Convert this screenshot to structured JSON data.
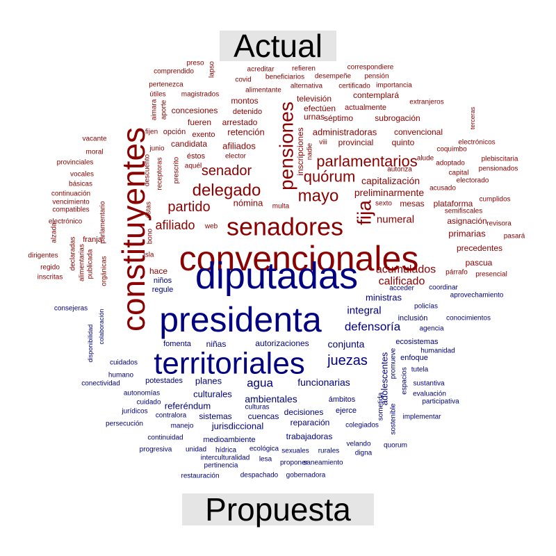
{
  "chart_data": {
    "type": "comparison_wordcloud",
    "groups": [
      {
        "label": "Actual",
        "color": "#8b0000"
      },
      {
        "label": "Propuesta",
        "color": "#000080"
      }
    ],
    "words": [
      {
        "text": "convencionales",
        "group": 0,
        "size": 50
      },
      {
        "text": "constituyentes",
        "group": 0,
        "size": 46
      },
      {
        "text": "senadores",
        "group": 0,
        "size": 36
      },
      {
        "text": "pensiones",
        "group": 0,
        "size": 28
      },
      {
        "text": "fija",
        "group": 0,
        "size": 28
      },
      {
        "text": "delegado",
        "group": 0,
        "size": 24
      },
      {
        "text": "mayo",
        "group": 0,
        "size": 24
      },
      {
        "text": "parlamentarios",
        "group": 0,
        "size": 22
      },
      {
        "text": "quórum",
        "group": 0,
        "size": 22
      },
      {
        "text": "senador",
        "group": 0,
        "size": 20
      },
      {
        "text": "partido",
        "group": 0,
        "size": 20
      },
      {
        "text": "afiliado",
        "group": 0,
        "size": 18
      },
      {
        "text": "acumulados",
        "group": 0,
        "size": 16
      },
      {
        "text": "calificado",
        "group": 0,
        "size": 16
      },
      {
        "text": "numeral",
        "group": 0,
        "size": 15
      },
      {
        "text": "preliminarmente",
        "group": 0,
        "size": 14
      },
      {
        "text": "capitalización",
        "group": 0,
        "size": 14
      },
      {
        "text": "administradoras",
        "group": 0,
        "size": 13
      },
      {
        "text": "nómina",
        "group": 0,
        "size": 13
      },
      {
        "text": "afiliados",
        "group": 0,
        "size": 13
      },
      {
        "text": "retención",
        "group": 0,
        "size": 13
      },
      {
        "text": "primarias",
        "group": 0,
        "size": 13
      },
      {
        "text": "precedentes",
        "group": 0,
        "size": 12
      },
      {
        "text": "pascua",
        "group": 0,
        "size": 12
      },
      {
        "text": "hace",
        "group": 0,
        "size": 12
      },
      {
        "text": "asignación",
        "group": 0,
        "size": 12
      },
      {
        "text": "plataforma",
        "group": 0,
        "size": 12
      },
      {
        "text": "mesas",
        "group": 0,
        "size": 12
      },
      {
        "text": "convencional",
        "group": 0,
        "size": 12
      },
      {
        "text": "quinto",
        "group": 0,
        "size": 12
      },
      {
        "text": "séptimo",
        "group": 0,
        "size": 12
      },
      {
        "text": "subrogación",
        "group": 0,
        "size": 12
      },
      {
        "text": "candidata",
        "group": 0,
        "size": 12
      },
      {
        "text": "fueren",
        "group": 0,
        "size": 12
      },
      {
        "text": "arrestado",
        "group": 0,
        "size": 12
      },
      {
        "text": "montos",
        "group": 0,
        "size": 12
      },
      {
        "text": "detenido",
        "group": 0,
        "size": 11
      },
      {
        "text": "concesiones",
        "group": 0,
        "size": 12
      },
      {
        "text": "contemplará",
        "group": 0,
        "size": 12
      },
      {
        "text": "televisión",
        "group": 0,
        "size": 12
      },
      {
        "text": "efectúen",
        "group": 0,
        "size": 12
      },
      {
        "text": "actualmente",
        "group": 0,
        "size": 11
      },
      {
        "text": "urnas",
        "group": 0,
        "size": 12
      },
      {
        "text": "provincial",
        "group": 0,
        "size": 12
      },
      {
        "text": "inscripciones",
        "group": 0,
        "size": 12
      },
      {
        "text": "exento",
        "group": 0,
        "size": 11
      },
      {
        "text": "opción",
        "group": 0,
        "size": 11
      },
      {
        "text": "fijen",
        "group": 0,
        "size": 10
      },
      {
        "text": "magistrados",
        "group": 0,
        "size": 10
      },
      {
        "text": "alimentante",
        "group": 0,
        "size": 10
      },
      {
        "text": "certificado",
        "group": 0,
        "size": 10
      },
      {
        "text": "pertenezca",
        "group": 0,
        "size": 10
      },
      {
        "text": "comprendido",
        "group": 0,
        "size": 10
      },
      {
        "text": "preso",
        "group": 0,
        "size": 10
      },
      {
        "text": "lapso",
        "group": 0,
        "size": 10
      },
      {
        "text": "acreditar",
        "group": 0,
        "size": 10
      },
      {
        "text": "refieren",
        "group": 0,
        "size": 10
      },
      {
        "text": "correspondiere",
        "group": 0,
        "size": 10
      },
      {
        "text": "covid",
        "group": 0,
        "size": 10
      },
      {
        "text": "beneficiarios",
        "group": 0,
        "size": 10
      },
      {
        "text": "desempeñe",
        "group": 0,
        "size": 10
      },
      {
        "text": "pensión",
        "group": 0,
        "size": 10
      },
      {
        "text": "alternativa",
        "group": 0,
        "size": 10
      },
      {
        "text": "importancia",
        "group": 0,
        "size": 10
      },
      {
        "text": "extranjeros",
        "group": 0,
        "size": 10
      },
      {
        "text": "útiles",
        "group": 0,
        "size": 10
      },
      {
        "text": "aimara",
        "group": 0,
        "size": 10
      },
      {
        "text": "aporte",
        "group": 0,
        "size": 10
      },
      {
        "text": "junio",
        "group": 0,
        "size": 10
      },
      {
        "text": "éstos",
        "group": 0,
        "size": 11
      },
      {
        "text": "elector",
        "group": 0,
        "size": 10
      },
      {
        "text": "aquél",
        "group": 0,
        "size": 10
      },
      {
        "text": "nadie",
        "group": 0,
        "size": 10
      },
      {
        "text": "viii",
        "group": 0,
        "size": 10
      },
      {
        "text": "sexto",
        "group": 0,
        "size": 10
      },
      {
        "text": "multa",
        "group": 0,
        "size": 10
      },
      {
        "text": "prescrito",
        "group": 0,
        "size": 10
      },
      {
        "text": "receptoras",
        "group": 0,
        "size": 10
      },
      {
        "text": "descuento",
        "group": 0,
        "size": 10
      },
      {
        "text": "vacante",
        "group": 0,
        "size": 10
      },
      {
        "text": "moral",
        "group": 0,
        "size": 10
      },
      {
        "text": "provinciales",
        "group": 0,
        "size": 10
      },
      {
        "text": "vocales",
        "group": 0,
        "size": 10
      },
      {
        "text": "básicas",
        "group": 0,
        "size": 10
      },
      {
        "text": "continuación",
        "group": 0,
        "size": 10
      },
      {
        "text": "vencimiento",
        "group": 0,
        "size": 10
      },
      {
        "text": "compatibles",
        "group": 0,
        "size": 10
      },
      {
        "text": "electrónico",
        "group": 0,
        "size": 10
      },
      {
        "text": "parlamentario",
        "group": 0,
        "size": 10
      },
      {
        "text": "alzada",
        "group": 0,
        "size": 10
      },
      {
        "text": "dirigentes",
        "group": 0,
        "size": 10
      },
      {
        "text": "regido",
        "group": 0,
        "size": 10
      },
      {
        "text": "inscritas",
        "group": 0,
        "size": 10
      },
      {
        "text": "declaradas",
        "group": 0,
        "size": 10
      },
      {
        "text": "alimentarias",
        "group": 0,
        "size": 10
      },
      {
        "text": "publicada",
        "group": 0,
        "size": 10
      },
      {
        "text": "orgánicas",
        "group": 0,
        "size": 10
      },
      {
        "text": "franja",
        "group": 0,
        "size": 11
      },
      {
        "text": "bono",
        "group": 0,
        "size": 10
      },
      {
        "text": "éstas",
        "group": 0,
        "size": 10
      },
      {
        "text": "isla",
        "group": 0,
        "size": 10
      },
      {
        "text": "web",
        "group": 0,
        "size": 10
      },
      {
        "text": "coquimbo",
        "group": 0,
        "size": 10
      },
      {
        "text": "electrónicos",
        "group": 0,
        "size": 10
      },
      {
        "text": "terceras",
        "group": 0,
        "size": 9
      },
      {
        "text": "alude",
        "group": 0,
        "size": 10
      },
      {
        "text": "adoptado",
        "group": 0,
        "size": 10
      },
      {
        "text": "plebiscitaria",
        "group": 0,
        "size": 10
      },
      {
        "text": "capital",
        "group": 0,
        "size": 10
      },
      {
        "text": "pensionados",
        "group": 0,
        "size": 10
      },
      {
        "text": "autoriza",
        "group": 0,
        "size": 10
      },
      {
        "text": "electorado",
        "group": 0,
        "size": 10
      },
      {
        "text": "acusado",
        "group": 0,
        "size": 10
      },
      {
        "text": "cumplidos",
        "group": 0,
        "size": 10
      },
      {
        "text": "semifiscales",
        "group": 0,
        "size": 10
      },
      {
        "text": "revisora",
        "group": 0,
        "size": 10
      },
      {
        "text": "pasará",
        "group": 0,
        "size": 10
      },
      {
        "text": "párrafo",
        "group": 0,
        "size": 10
      },
      {
        "text": "presencial",
        "group": 0,
        "size": 10
      },
      {
        "text": "diputadas",
        "group": 1,
        "size": 54
      },
      {
        "text": "presidenta",
        "group": 1,
        "size": 50
      },
      {
        "text": "territoriales",
        "group": 1,
        "size": 44
      },
      {
        "text": "juezas",
        "group": 1,
        "size": 20
      },
      {
        "text": "defensoría",
        "group": 1,
        "size": 17
      },
      {
        "text": "agua",
        "group": 1,
        "size": 17
      },
      {
        "text": "integral",
        "group": 1,
        "size": 15
      },
      {
        "text": "ministras",
        "group": 1,
        "size": 13
      },
      {
        "text": "conjunta",
        "group": 1,
        "size": 14
      },
      {
        "text": "funcionarias",
        "group": 1,
        "size": 14
      },
      {
        "text": "ambientales",
        "group": 1,
        "size": 14
      },
      {
        "text": "planes",
        "group": 1,
        "size": 13
      },
      {
        "text": "culturales",
        "group": 1,
        "size": 13
      },
      {
        "text": "referéndum",
        "group": 1,
        "size": 13
      },
      {
        "text": "adolescentes",
        "group": 1,
        "size": 13
      },
      {
        "text": "jurisdiccional",
        "group": 1,
        "size": 13
      },
      {
        "text": "sistemas",
        "group": 1,
        "size": 12
      },
      {
        "text": "cuencas",
        "group": 1,
        "size": 12
      },
      {
        "text": "decisiones",
        "group": 1,
        "size": 12
      },
      {
        "text": "reparación",
        "group": 1,
        "size": 12
      },
      {
        "text": "trabajadoras",
        "group": 1,
        "size": 12
      },
      {
        "text": "autorizaciones",
        "group": 1,
        "size": 12
      },
      {
        "text": "niñas",
        "group": 1,
        "size": 12
      },
      {
        "text": "fomenta",
        "group": 1,
        "size": 11
      },
      {
        "text": "potestades",
        "group": 1,
        "size": 11
      },
      {
        "text": "ecosistemas",
        "group": 1,
        "size": 11
      },
      {
        "text": "enfoque",
        "group": 1,
        "size": 11
      },
      {
        "text": "inclusión",
        "group": 1,
        "size": 11
      },
      {
        "text": "policías",
        "group": 1,
        "size": 10
      },
      {
        "text": "ámbitos",
        "group": 1,
        "size": 11
      },
      {
        "text": "ejerce",
        "group": 1,
        "size": 11
      },
      {
        "text": "promueve",
        "group": 1,
        "size": 10
      },
      {
        "text": "espacios",
        "group": 1,
        "size": 10
      },
      {
        "text": "sometida",
        "group": 1,
        "size": 10
      },
      {
        "text": "sostenible",
        "group": 1,
        "size": 10
      },
      {
        "text": "regule",
        "group": 1,
        "size": 11
      },
      {
        "text": "niños",
        "group": 1,
        "size": 11
      },
      {
        "text": "acceder",
        "group": 1,
        "size": 10
      },
      {
        "text": "coordinar",
        "group": 1,
        "size": 10
      },
      {
        "text": "aprovechamiento",
        "group": 1,
        "size": 10
      },
      {
        "text": "consejeras",
        "group": 1,
        "size": 10
      },
      {
        "text": "agencia",
        "group": 1,
        "size": 10
      },
      {
        "text": "conocimientos",
        "group": 1,
        "size": 10
      },
      {
        "text": "humanidad",
        "group": 1,
        "size": 10
      },
      {
        "text": "tutela",
        "group": 1,
        "size": 10
      },
      {
        "text": "sustantiva",
        "group": 1,
        "size": 10
      },
      {
        "text": "evaluación",
        "group": 1,
        "size": 10
      },
      {
        "text": "participativa",
        "group": 1,
        "size": 10
      },
      {
        "text": "implementar",
        "group": 1,
        "size": 10
      },
      {
        "text": "colegiados",
        "group": 1,
        "size": 10
      },
      {
        "text": "quorum",
        "group": 1,
        "size": 10
      },
      {
        "text": "velando",
        "group": 1,
        "size": 10
      },
      {
        "text": "digna",
        "group": 1,
        "size": 10
      },
      {
        "text": "cuidados",
        "group": 1,
        "size": 10
      },
      {
        "text": "humano",
        "group": 1,
        "size": 10
      },
      {
        "text": "conectividad",
        "group": 1,
        "size": 10
      },
      {
        "text": "autonomías",
        "group": 1,
        "size": 10
      },
      {
        "text": "cuidado",
        "group": 1,
        "size": 10
      },
      {
        "text": "jurídicos",
        "group": 1,
        "size": 10
      },
      {
        "text": "contralora",
        "group": 1,
        "size": 10
      },
      {
        "text": "culturas",
        "group": 1,
        "size": 10
      },
      {
        "text": "persecución",
        "group": 1,
        "size": 10
      },
      {
        "text": "manejo",
        "group": 1,
        "size": 10
      },
      {
        "text": "medioambiente",
        "group": 1,
        "size": 11
      },
      {
        "text": "continuidad",
        "group": 1,
        "size": 10
      },
      {
        "text": "progresiva",
        "group": 1,
        "size": 10
      },
      {
        "text": "unidad",
        "group": 1,
        "size": 10
      },
      {
        "text": "hídrica",
        "group": 1,
        "size": 10
      },
      {
        "text": "ecológica",
        "group": 1,
        "size": 10
      },
      {
        "text": "sexuales",
        "group": 1,
        "size": 10
      },
      {
        "text": "rurales",
        "group": 1,
        "size": 10
      },
      {
        "text": "interculturalidad",
        "group": 1,
        "size": 10
      },
      {
        "text": "lesa",
        "group": 1,
        "size": 10
      },
      {
        "text": "pertinencia",
        "group": 1,
        "size": 10
      },
      {
        "text": "proponer",
        "group": 1,
        "size": 10
      },
      {
        "text": "saneamiento",
        "group": 1,
        "size": 10
      },
      {
        "text": "restauración",
        "group": 1,
        "size": 10
      },
      {
        "text": "despachado",
        "group": 1,
        "size": 10
      },
      {
        "text": "gobernadora",
        "group": 1,
        "size": 10
      },
      {
        "text": "disponibilidad",
        "group": 1,
        "size": 9
      },
      {
        "text": "colaboración",
        "group": 1,
        "size": 9
      }
    ]
  }
}
